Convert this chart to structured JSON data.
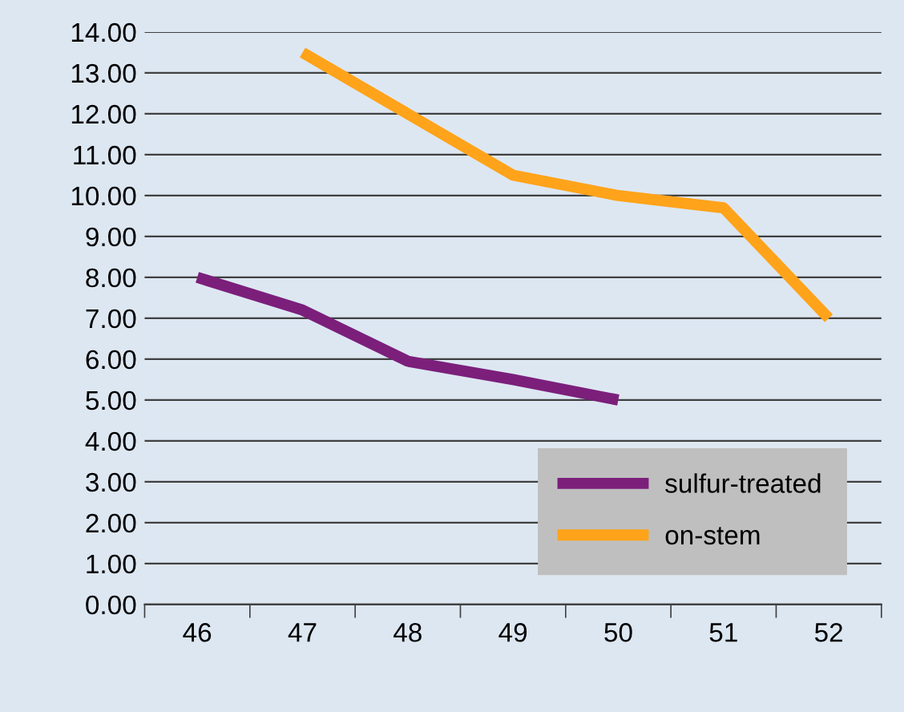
{
  "chart_data": {
    "type": "line",
    "categories": [
      "46",
      "47",
      "48",
      "49",
      "50",
      "51",
      "52"
    ],
    "series": [
      {
        "name": "sulfur-treated",
        "color": "#7b1f7b",
        "values": [
          8.0,
          7.2,
          5.95,
          5.5,
          5.0,
          null,
          null
        ]
      },
      {
        "name": "on-stem",
        "color": "#ffa31a",
        "values": [
          null,
          13.5,
          12.0,
          10.5,
          10.0,
          9.7,
          7.0
        ]
      }
    ],
    "ylim": [
      0,
      14
    ],
    "yticks": [
      {
        "value": 0,
        "label": "0.00"
      },
      {
        "value": 1,
        "label": "1.00"
      },
      {
        "value": 2,
        "label": "2.00"
      },
      {
        "value": 3,
        "label": "3.00"
      },
      {
        "value": 4,
        "label": "4.00"
      },
      {
        "value": 5,
        "label": "5.00"
      },
      {
        "value": 6,
        "label": "6.00"
      },
      {
        "value": 7,
        "label": "7.00"
      },
      {
        "value": 8,
        "label": "8.00"
      },
      {
        "value": 9,
        "label": "9.00"
      },
      {
        "value": 10,
        "label": "10.00"
      },
      {
        "value": 11,
        "label": "11.00"
      },
      {
        "value": 12,
        "label": "12.00"
      },
      {
        "value": 13,
        "label": "13.00"
      },
      {
        "value": 14,
        "label": "14.00"
      }
    ],
    "grid": "y",
    "legend": "bottom right",
    "marker": "none",
    "line_style": "solid"
  }
}
